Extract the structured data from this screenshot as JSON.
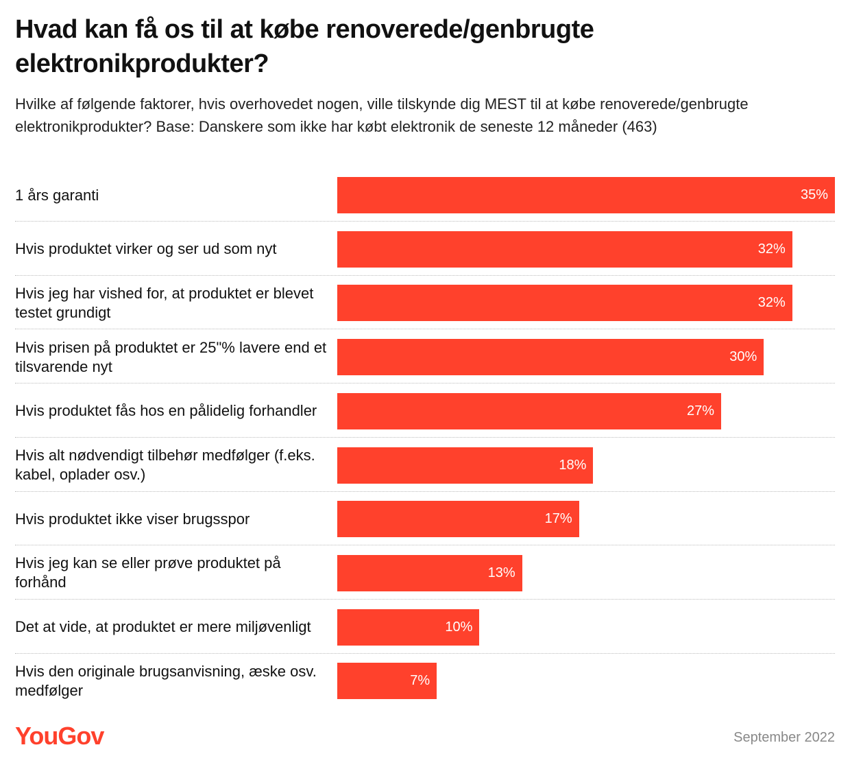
{
  "chart_data": {
    "type": "bar",
    "orientation": "horizontal",
    "title": "Hvad kan få os til at købe renoverede/genbrugte elektronikprodukter?",
    "subtitle": "Hvilke af følgende faktorer, hvis overhovedet nogen, ville tilskynde dig MEST til at købe renoverede/genbrugte elektronikprodukter? Base: Danskere som ikke har købt elektronik de seneste 12 måneder (463)",
    "categories": [
      "1 års garanti",
      "Hvis produktet virker og ser ud som nyt",
      "Hvis jeg har vished for, at produktet er blevet testet grundigt",
      "Hvis prisen på produktet er 25\"% lavere end et tilsvarende nyt",
      "Hvis produktet fås hos en pålidelig forhandler",
      "Hvis alt nødvendigt tilbehør medfølger (f.eks. kabel, oplader osv.)",
      "Hvis produktet ikke viser brugsspor",
      "Hvis jeg kan se eller prøve produktet på forhånd",
      "Det at vide, at produktet er mere miljøvenligt",
      "Hvis den originale brugsanvisning, æske osv. medfølger"
    ],
    "values": [
      35,
      32,
      32,
      30,
      27,
      18,
      17,
      13,
      10,
      7
    ],
    "value_labels": [
      "35%",
      "32%",
      "32%",
      "30%",
      "27%",
      "18%",
      "17%",
      "13%",
      "10%",
      "7%"
    ],
    "color": "#ff412c",
    "source": "YouGov",
    "date": "September 2022"
  }
}
